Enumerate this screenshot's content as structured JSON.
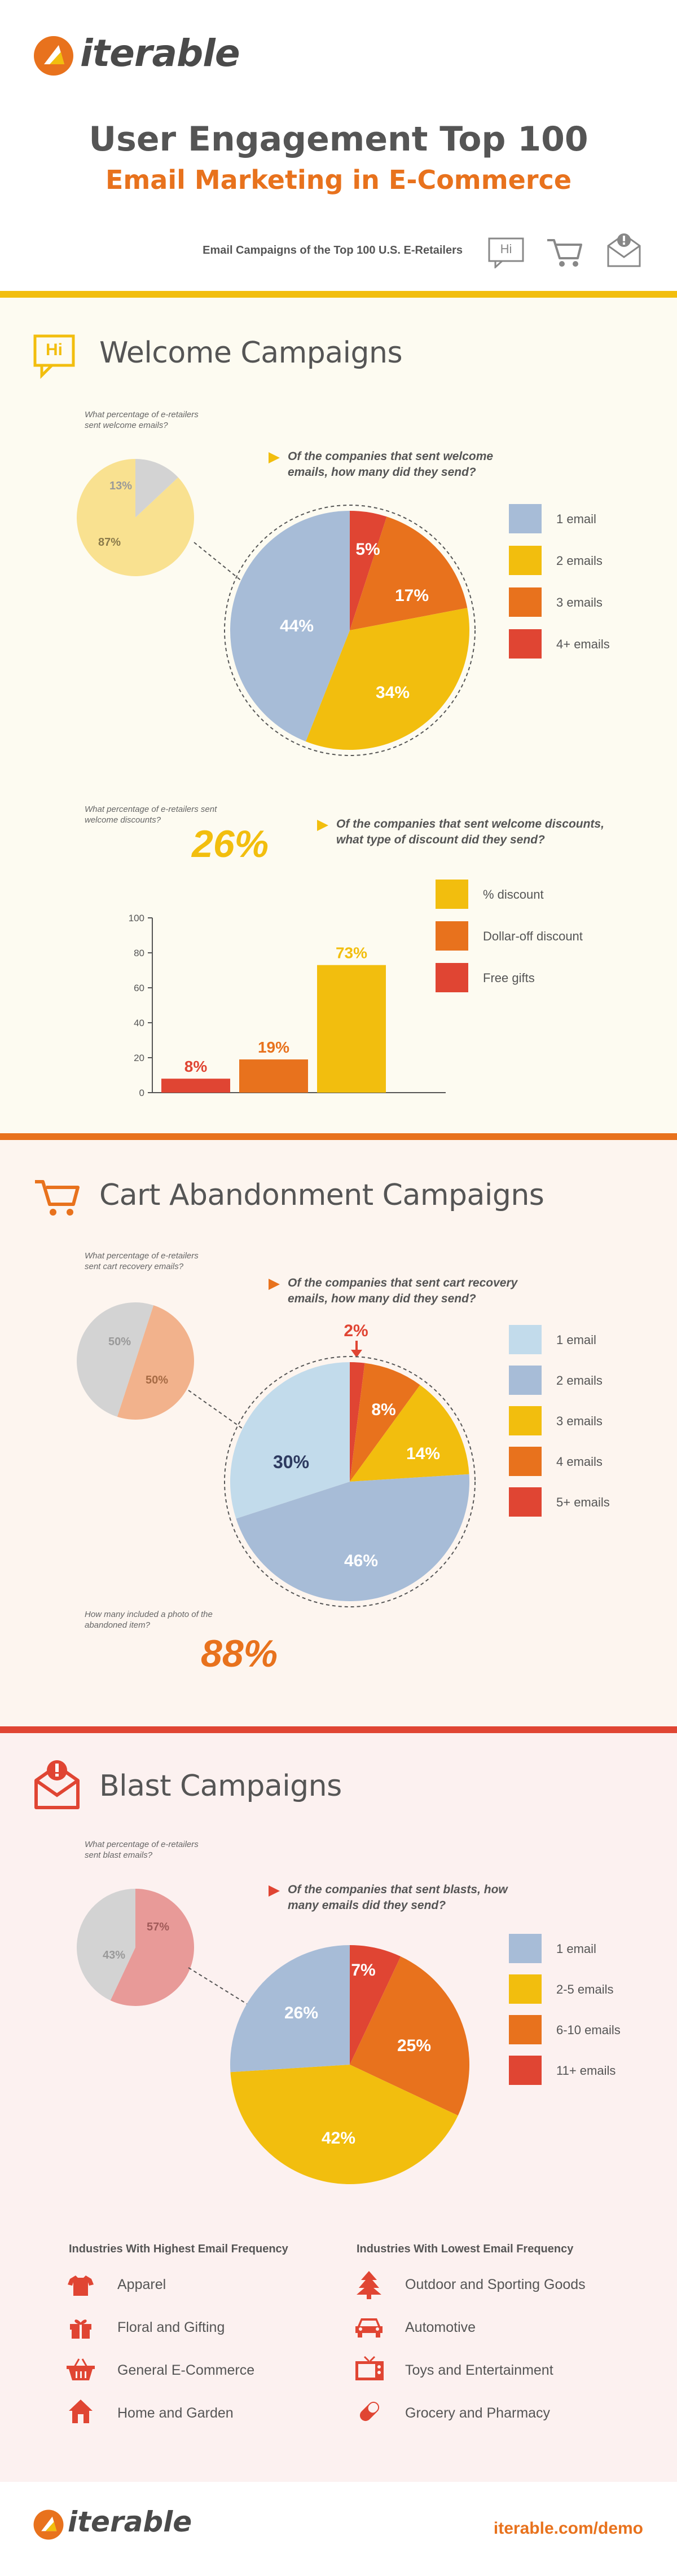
{
  "header": {
    "logo_text": "iterable",
    "title": "User Engagement Top 100",
    "subtitle": "Email Marketing in E-Commerce",
    "tagline": "Email Campaigns of the Top 100 U.S. E-Retailers",
    "hi_icon_text": "Hi"
  },
  "colors": {
    "orange": "#e8721d",
    "yellow": "#f2be0e",
    "red": "#e04533",
    "blue": "#a7bcd7",
    "light_blue": "#c2dbeb",
    "gray": "#d3d3d3",
    "pale_yellow": "#f9e190",
    "peach": "#f2b28c",
    "salmon": "#e89a98"
  },
  "welcome": {
    "title": "Welcome Campaigns",
    "hi_icon_text": "Hi",
    "sent_question": "What percentage of e-retailers sent welcome emails?",
    "sent_pie": {
      "no_label": "13%",
      "yes_label": "87%",
      "no": 13,
      "yes": 87
    },
    "count_question": "Of the companies that sent welcome emails, how many did they send?",
    "count_pie": {
      "slices": [
        {
          "label": "5%",
          "value": 5
        },
        {
          "label": "17%",
          "value": 17
        },
        {
          "label": "34%",
          "value": 34
        },
        {
          "label": "44%",
          "value": 44
        }
      ]
    },
    "legend": [
      "1 email",
      "2 emails",
      "3 emails",
      "4+ emails"
    ],
    "discount_question": "What percentage of e-retailers sent welcome discounts?",
    "discount_pct": "26%",
    "type_question": "Of the companies that sent welcome discounts, what type of discount did they send?",
    "bar_legend": [
      "% discount",
      "Dollar-off discount",
      "Free gifts"
    ],
    "bars": [
      {
        "label": "8%",
        "value": 8
      },
      {
        "label": "19%",
        "value": 19
      },
      {
        "label": "73%",
        "value": 73
      }
    ],
    "y_ticks": [
      "0",
      "20",
      "40",
      "60",
      "80",
      "100"
    ]
  },
  "cart": {
    "title": "Cart Abandonment Campaigns",
    "sent_question": "What percentage of e-retailers sent cart recovery emails?",
    "sent_pie": {
      "no_label": "50%",
      "yes_label": "50%",
      "no": 50,
      "yes": 50
    },
    "count_question": "Of the companies that sent cart recovery emails, how many did they send?",
    "count_pie": {
      "callout": "2%",
      "slices": [
        {
          "label": "",
          "value": 2
        },
        {
          "label": "8%",
          "value": 8
        },
        {
          "label": "14%",
          "value": 14
        },
        {
          "label": "46%",
          "value": 46
        },
        {
          "label": "30%",
          "value": 30
        }
      ]
    },
    "legend": [
      "1 email",
      "2 emails",
      "3 emails",
      "4 emails",
      "5+ emails"
    ],
    "photo_question": "How many included a photo of the abandoned item?",
    "photo_pct": "88%"
  },
  "blast": {
    "title": "Blast Campaigns",
    "sent_question": "What percentage of e-retailers sent blast emails?",
    "sent_pie": {
      "no_label": "43%",
      "yes_label": "57%",
      "no": 43,
      "yes": 57
    },
    "count_question": "Of the companies that sent blasts, how many emails did they send?",
    "count_pie": {
      "slices": [
        {
          "label": "7%",
          "value": 7
        },
        {
          "label": "25%",
          "value": 25
        },
        {
          "label": "42%",
          "value": 42
        },
        {
          "label": "26%",
          "value": 26
        }
      ]
    },
    "legend": [
      "1 email",
      "2-5 emails",
      "6-10 emails",
      "11+ emails"
    ],
    "high_heading": "Industries With Highest Email Frequency",
    "high_list": [
      "Apparel",
      "Floral and Gifting",
      "General E-Commerce",
      "Home and Garden"
    ],
    "low_heading": "Industries With Lowest Email Frequency",
    "low_list": [
      "Outdoor and Sporting Goods",
      "Automotive",
      "Toys and Entertainment",
      "Grocery and Pharmacy"
    ]
  },
  "footer": {
    "logo_text": "iterable",
    "url": "iterable.com/demo"
  }
}
